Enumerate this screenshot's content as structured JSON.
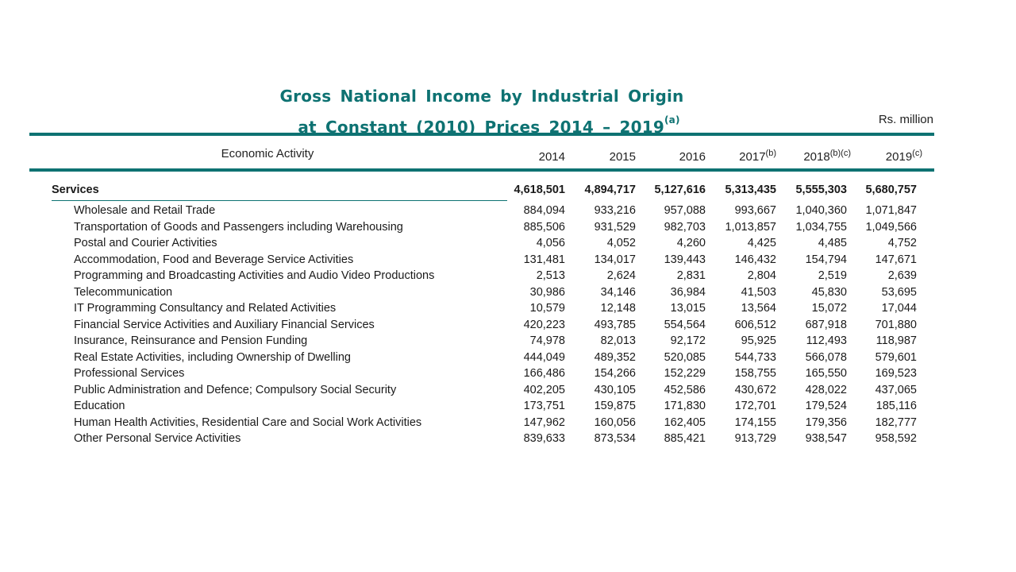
{
  "title": {
    "line1": "Gross National Income by Industrial Origin",
    "line1_note": "(a)",
    "line2": "at Constant (2010) Prices 2014 – 2019"
  },
  "units": "Rs. million",
  "table": {
    "headers": {
      "activity": "Economic Activity",
      "years": [
        {
          "year": "2014",
          "note": ""
        },
        {
          "year": "2015",
          "note": ""
        },
        {
          "year": "2016",
          "note": ""
        },
        {
          "year": "2017",
          "note": "(b)"
        },
        {
          "year": "2018",
          "note": "(b)(c)"
        },
        {
          "year": "2019",
          "note": "(c)"
        }
      ]
    },
    "section": {
      "label": "Services",
      "values": [
        "4,618,501",
        "4,894,717",
        "5,127,616",
        "5,313,435",
        "5,555,303",
        "5,680,757"
      ]
    },
    "rows": [
      {
        "label": "Wholesale and Retail Trade",
        "values": [
          "884,094",
          "933,216",
          "957,088",
          "993,667",
          "1,040,360",
          "1,071,847"
        ]
      },
      {
        "label": "Transportation of Goods and Passengers including Warehousing",
        "values": [
          "885,506",
          "931,529",
          "982,703",
          "1,013,857",
          "1,034,755",
          "1,049,566"
        ]
      },
      {
        "label": "Postal and Courier Activities",
        "values": [
          "4,056",
          "4,052",
          "4,260",
          "4,425",
          "4,485",
          "4,752"
        ]
      },
      {
        "label": "Accommodation, Food and Beverage Service Activities",
        "values": [
          "131,481",
          "134,017",
          "139,443",
          "146,432",
          "154,794",
          "147,671"
        ]
      },
      {
        "label": "Programming and Broadcasting Activities and Audio Video Productions",
        "values": [
          "2,513",
          "2,624",
          "2,831",
          "2,804",
          "2,519",
          "2,639"
        ]
      },
      {
        "label": "Telecommunication",
        "values": [
          "30,986",
          "34,146",
          "36,984",
          "41,503",
          "45,830",
          "53,695"
        ]
      },
      {
        "label": "IT Programming Consultancy and Related Activities",
        "values": [
          "10,579",
          "12,148",
          "13,015",
          "13,564",
          "15,072",
          "17,044"
        ]
      },
      {
        "label": "Financial Service Activities and Auxiliary Financial Services",
        "values": [
          "420,223",
          "493,785",
          "554,564",
          "606,512",
          "687,918",
          "701,880"
        ]
      },
      {
        "label": "Insurance, Reinsurance and Pension Funding",
        "values": [
          "74,978",
          "82,013",
          "92,172",
          "95,925",
          "112,493",
          "118,987"
        ]
      },
      {
        "label": "Real Estate Activities, including Ownership of Dwelling",
        "values": [
          "444,049",
          "489,352",
          "520,085",
          "544,733",
          "566,078",
          "579,601"
        ]
      },
      {
        "label": "Professional Services",
        "values": [
          "166,486",
          "154,266",
          "152,229",
          "158,755",
          "165,550",
          "169,523"
        ]
      },
      {
        "label": "Public Administration and Defence; Compulsory Social Security",
        "values": [
          "402,205",
          "430,105",
          "452,586",
          "430,672",
          "428,022",
          "437,065"
        ]
      },
      {
        "label": "Education",
        "values": [
          "173,751",
          "159,875",
          "171,830",
          "172,701",
          "179,524",
          "185,116"
        ]
      },
      {
        "label": "Human Health Activities, Residential Care and Social Work Activities",
        "values": [
          "147,962",
          "160,056",
          "162,405",
          "174,155",
          "179,356",
          "182,777"
        ]
      },
      {
        "label": "Other Personal Service Activities",
        "values": [
          "839,633",
          "873,534",
          "885,421",
          "913,729",
          "938,547",
          "958,592"
        ]
      }
    ]
  },
  "colors": {
    "accent": "#0e7272"
  }
}
